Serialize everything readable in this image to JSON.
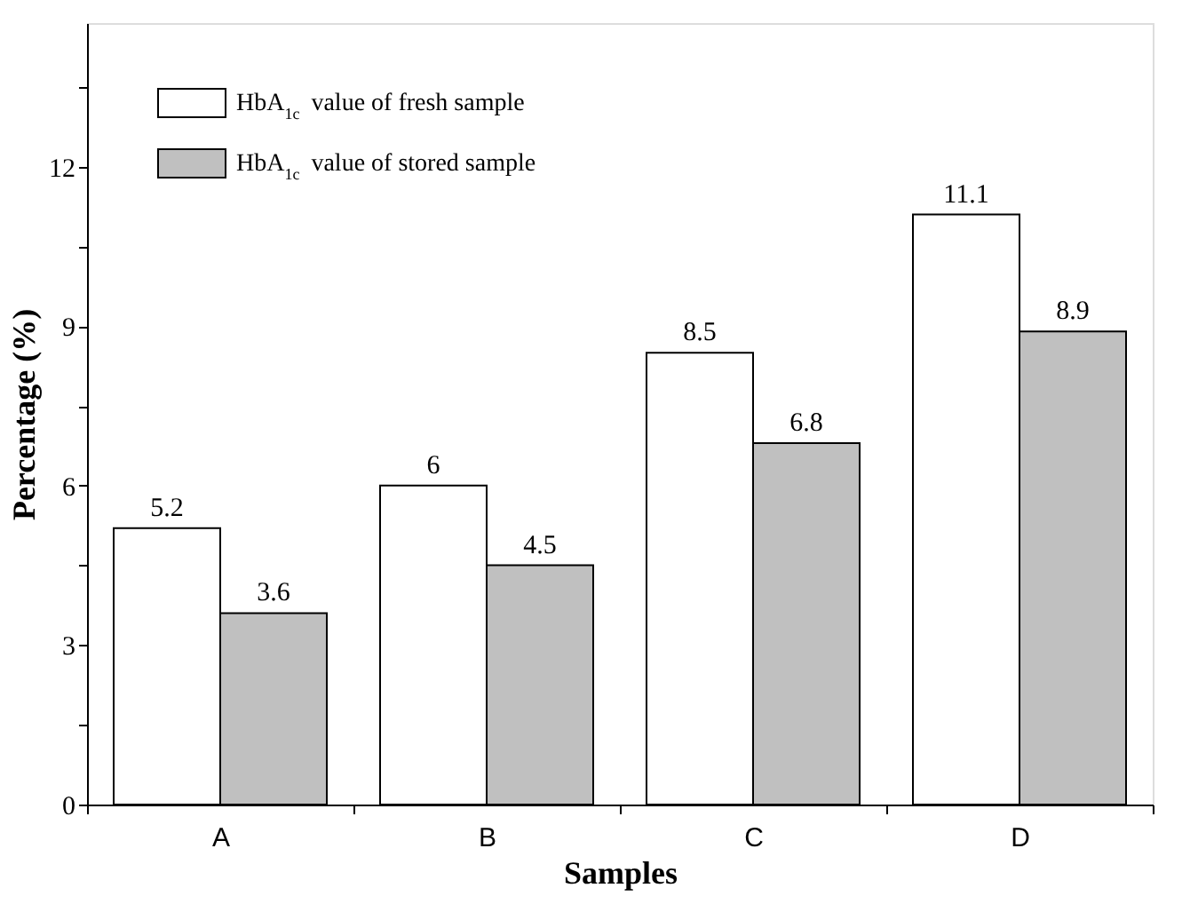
{
  "chart_data": {
    "type": "bar",
    "xlabel": "Samples",
    "ylabel": "Percentage (%)",
    "categories": [
      "A",
      "B",
      "C",
      "D"
    ],
    "series": [
      {
        "name": "HbA$_{1c}$ value of fresh sample",
        "color": "#ffffff",
        "values": [
          5.2,
          6,
          8.5,
          11.1
        ]
      },
      {
        "name": "HbA$_{1c}$ value of stored sample",
        "color": "#c0c0c0",
        "values": [
          3.6,
          4.5,
          6.8,
          8.9
        ]
      }
    ],
    "ylim": [
      0,
      14.7
    ],
    "yticks": [
      0,
      {
        "value": 1.5,
        "label": null
      },
      3,
      {
        "value": 4.5,
        "label": null
      },
      6,
      {
        "value": 7.5,
        "label": null
      },
      9,
      {
        "value": 10.5,
        "label": null
      },
      12,
      {
        "value": 13.5,
        "label": null
      }
    ],
    "data_labels": true,
    "grid": false,
    "legend": "top left"
  }
}
